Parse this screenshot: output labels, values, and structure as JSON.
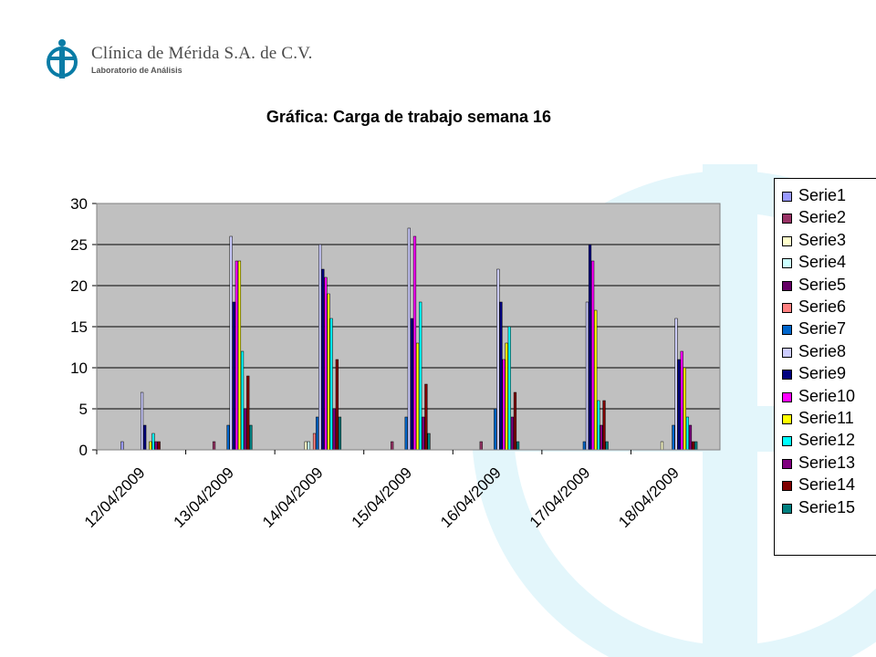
{
  "header": {
    "org_name": "Clínica de Mérida S.A. de C.V.",
    "org_sub": "Laboratorio de Análisis"
  },
  "colors": {
    "plot_bg": "#c0c0c0",
    "grid": "#000000",
    "watermark": "#e3f6fb",
    "logo": "#0a7ca6"
  },
  "chart_data": {
    "type": "bar",
    "title": "Gráfica: Carga de trabajo semana 16",
    "xlabel": "",
    "ylabel": "",
    "ylim": [
      0,
      30
    ],
    "yticks": [
      0,
      5,
      10,
      15,
      20,
      25,
      30
    ],
    "grid": true,
    "legend_position": "right",
    "categories": [
      "12/04/2009",
      "13/04/2009",
      "14/04/2009",
      "15/04/2009",
      "16/04/2009",
      "17/04/2009",
      "18/04/2009"
    ],
    "series": [
      {
        "name": "Serie1",
        "color": "#9999ff",
        "values": [
          1,
          0,
          0,
          0,
          0,
          0,
          0
        ]
      },
      {
        "name": "Serie2",
        "color": "#993366",
        "values": [
          0,
          1,
          0,
          1,
          1,
          0,
          0
        ]
      },
      {
        "name": "Serie3",
        "color": "#ffffcc",
        "values": [
          0,
          0,
          1,
          0,
          0,
          0,
          1
        ]
      },
      {
        "name": "Serie4",
        "color": "#ccffff",
        "values": [
          0,
          0,
          1,
          0,
          0,
          0,
          0
        ]
      },
      {
        "name": "Serie5",
        "color": "#660066",
        "values": [
          0,
          0,
          0,
          0,
          0,
          0,
          0
        ]
      },
      {
        "name": "Serie6",
        "color": "#ff8080",
        "values": [
          0,
          0,
          2,
          0,
          0,
          0,
          0
        ]
      },
      {
        "name": "Serie7",
        "color": "#0066cc",
        "values": [
          0,
          3,
          4,
          4,
          5,
          1,
          3
        ]
      },
      {
        "name": "Serie8",
        "color": "#ccccff",
        "values": [
          7,
          26,
          25,
          27,
          22,
          18,
          16
        ]
      },
      {
        "name": "Serie9",
        "color": "#000080",
        "values": [
          3,
          18,
          22,
          16,
          18,
          25,
          11
        ]
      },
      {
        "name": "Serie10",
        "color": "#ff00ff",
        "values": [
          0,
          23,
          21,
          26,
          11,
          23,
          12
        ]
      },
      {
        "name": "Serie11",
        "color": "#ffff00",
        "values": [
          1,
          23,
          19,
          13,
          13,
          17,
          10
        ]
      },
      {
        "name": "Serie12",
        "color": "#00ffff",
        "values": [
          2,
          12,
          16,
          18,
          15,
          6,
          4
        ]
      },
      {
        "name": "Serie13",
        "color": "#800080",
        "values": [
          1,
          5,
          5,
          4,
          4,
          3,
          3
        ]
      },
      {
        "name": "Serie14",
        "color": "#800000",
        "values": [
          1,
          9,
          11,
          8,
          7,
          6,
          1
        ]
      },
      {
        "name": "Serie15",
        "color": "#008080",
        "values": [
          0,
          3,
          4,
          2,
          1,
          1,
          1
        ]
      }
    ]
  }
}
